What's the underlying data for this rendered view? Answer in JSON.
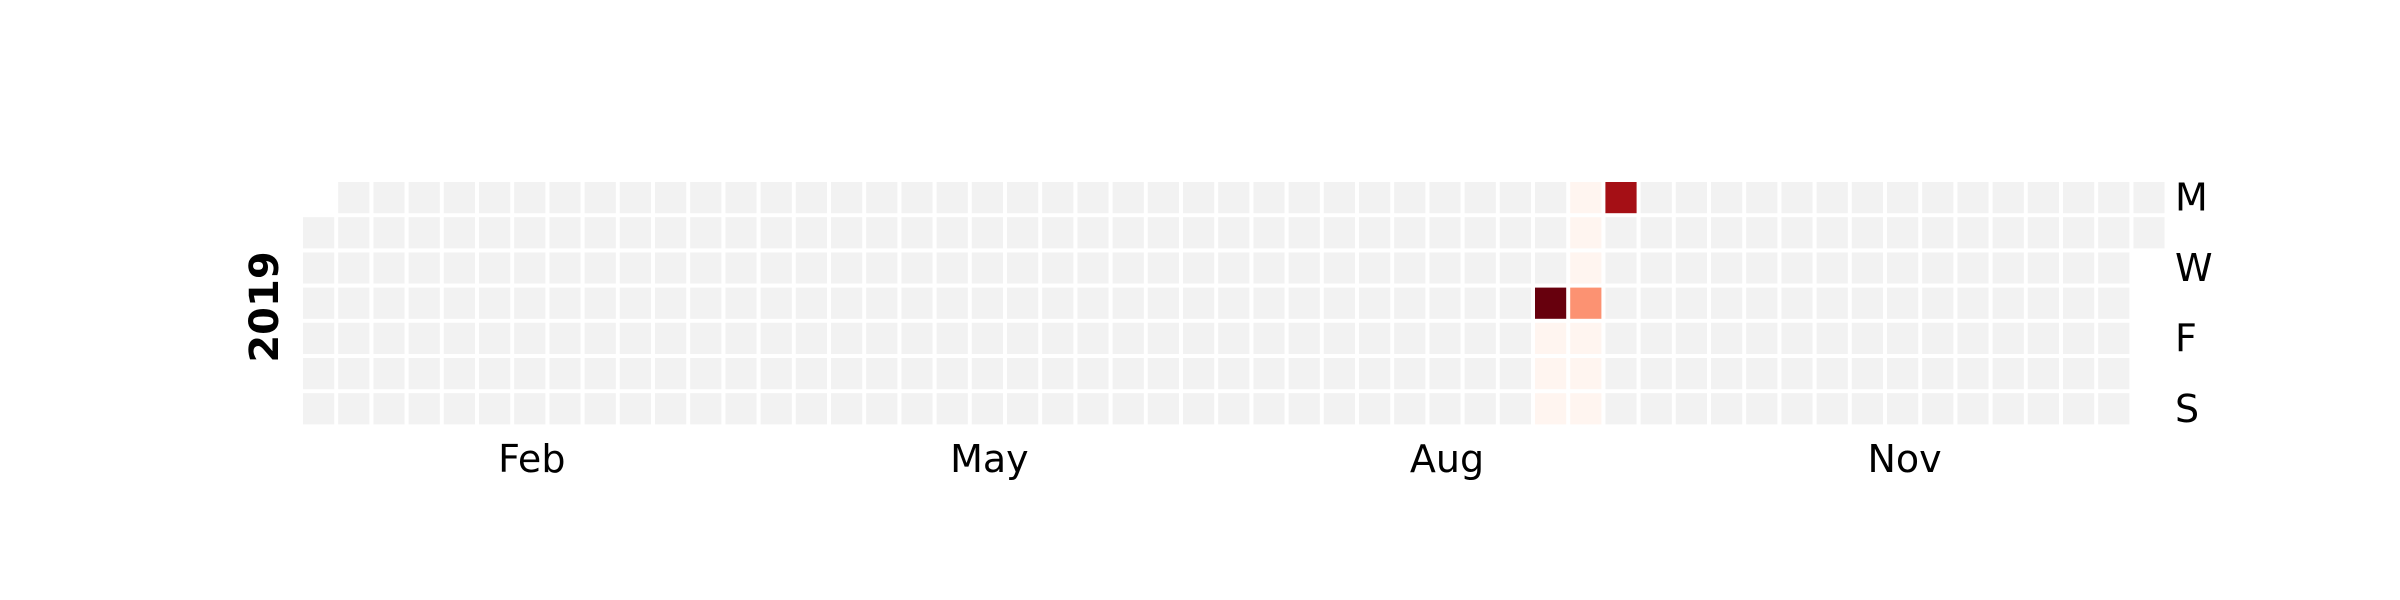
{
  "chart_data": {
    "type": "heatmap",
    "year": "2019",
    "title": "",
    "xlabel": "",
    "ylabel": "",
    "grid": false,
    "legend": "none",
    "colors": {
      "empty": "#f2f2f2",
      "scale": [
        "#fff5f0",
        "#fee0d2",
        "#fcbba1",
        "#fc9272",
        "#fb6a4a",
        "#ef3b2c",
        "#cb181d",
        "#a50f15",
        "#67000d"
      ]
    },
    "month_ticks": [
      {
        "label": "Feb",
        "week": 6.5
      },
      {
        "label": "May",
        "week": 19.5
      },
      {
        "label": "Aug",
        "week": 32.5
      },
      {
        "label": "Nov",
        "week": 45.5
      }
    ],
    "weekday_ticks": [
      {
        "label": "M",
        "day": 0
      },
      {
        "label": "W",
        "day": 2
      },
      {
        "label": "F",
        "day": 4
      },
      {
        "label": "S",
        "day": 6
      }
    ],
    "first_weekday_index": 1,
    "total_days": 365,
    "value_max": 1.0,
    "values": [
      {
        "week": 35,
        "day": 3,
        "value": 1.0
      },
      {
        "week": 36,
        "day": 3,
        "value": 0.4
      },
      {
        "week": 37,
        "day": 0,
        "value": 0.85
      },
      {
        "week": 35,
        "day": 4,
        "value": 0.03
      },
      {
        "week": 35,
        "day": 5,
        "value": 0.03
      },
      {
        "week": 35,
        "day": 6,
        "value": 0.03
      },
      {
        "week": 36,
        "day": 0,
        "value": 0.03
      },
      {
        "week": 36,
        "day": 1,
        "value": 0.03
      },
      {
        "week": 36,
        "day": 2,
        "value": 0.03
      },
      {
        "week": 36,
        "day": 4,
        "value": 0.03
      },
      {
        "week": 36,
        "day": 5,
        "value": 0.03
      },
      {
        "week": 36,
        "day": 6,
        "value": 0.03
      }
    ]
  }
}
